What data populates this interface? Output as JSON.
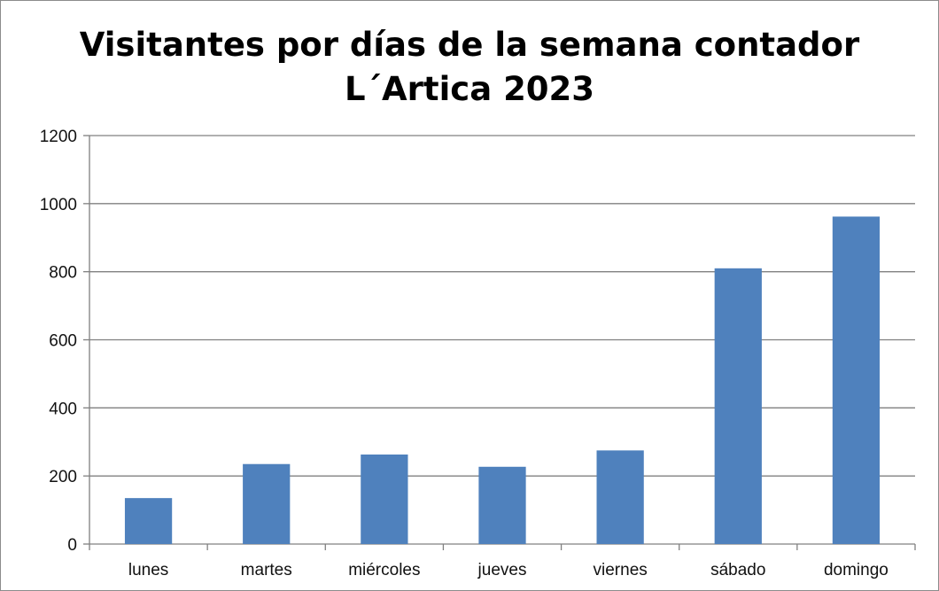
{
  "chart_data": {
    "type": "bar",
    "title": "Visitantes por días de la semana contador\nL´Artica 2023",
    "categories": [
      "lunes",
      "martes",
      "miércoles",
      "jueves",
      "viernes",
      "sábado",
      "domingo"
    ],
    "series": [
      {
        "values": [
          135,
          235,
          263,
          227,
          275,
          810,
          962
        ]
      }
    ],
    "xlabel": "",
    "ylabel": "",
    "ylim": [
      0,
      1200
    ],
    "yticks": [
      "0",
      "200",
      "400",
      "600",
      "800",
      "1000",
      "1200"
    ],
    "grid": true,
    "legend": "none",
    "bar_color": "#4f81bd",
    "grid_color": "#808080"
  }
}
